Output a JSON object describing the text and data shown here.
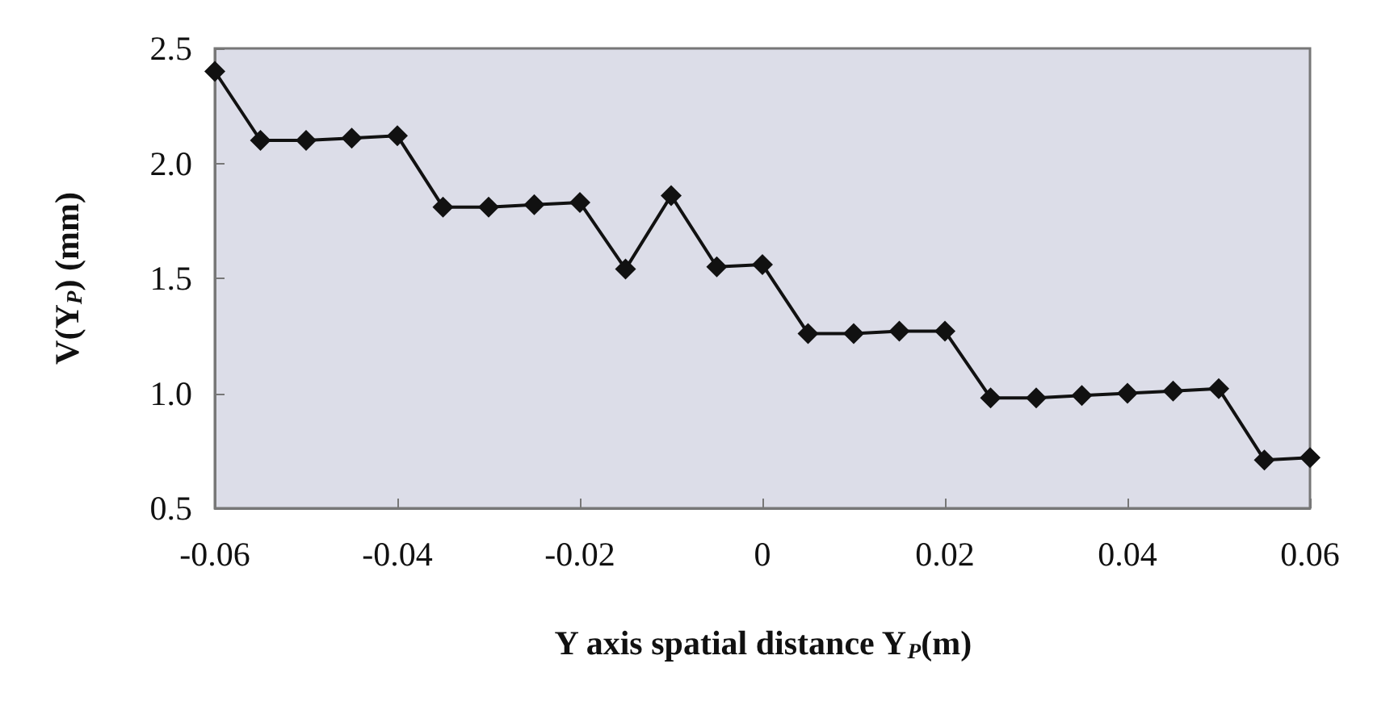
{
  "chart_data": {
    "type": "line",
    "xlabel": "Y axis spatial distance Y$_{P}$(m)",
    "ylabel": "V(Y$_{P}$) (mm)",
    "x": [
      -0.06,
      -0.055,
      -0.05,
      -0.045,
      -0.04,
      -0.035,
      -0.03,
      -0.025,
      -0.02,
      -0.015,
      -0.01,
      -0.005,
      0,
      0.005,
      0.01,
      0.015,
      0.02,
      0.025,
      0.03,
      0.035,
      0.04,
      0.045,
      0.05,
      0.055,
      0.06
    ],
    "series": [
      {
        "color": "#111111",
        "values": [
          2.4,
          2.1,
          2.1,
          2.11,
          2.12,
          1.81,
          1.81,
          1.82,
          1.83,
          1.54,
          1.86,
          1.55,
          1.56,
          1.26,
          1.26,
          1.27,
          1.27,
          0.98,
          0.98,
          0.99,
          1.0,
          1.01,
          1.02,
          0.71,
          0.72
        ]
      }
    ],
    "xlim": [
      -0.06,
      0.06
    ],
    "xticks": [
      -0.06,
      -0.04,
      -0.02,
      0,
      0.02,
      0.04,
      0.06
    ],
    "ylim": [
      0.5,
      2.5
    ],
    "yticks": [
      {
        "value": 0.5,
        "label": "0.5"
      },
      {
        "value": 1,
        "label": "1.0"
      },
      {
        "value": 1.5,
        "label": "1.5"
      },
      {
        "value": 2,
        "label": "2.0"
      },
      {
        "value": 2.5,
        "label": "2.5"
      }
    ],
    "grid": false,
    "marker": "diamond",
    "line_style": "solid"
  }
}
